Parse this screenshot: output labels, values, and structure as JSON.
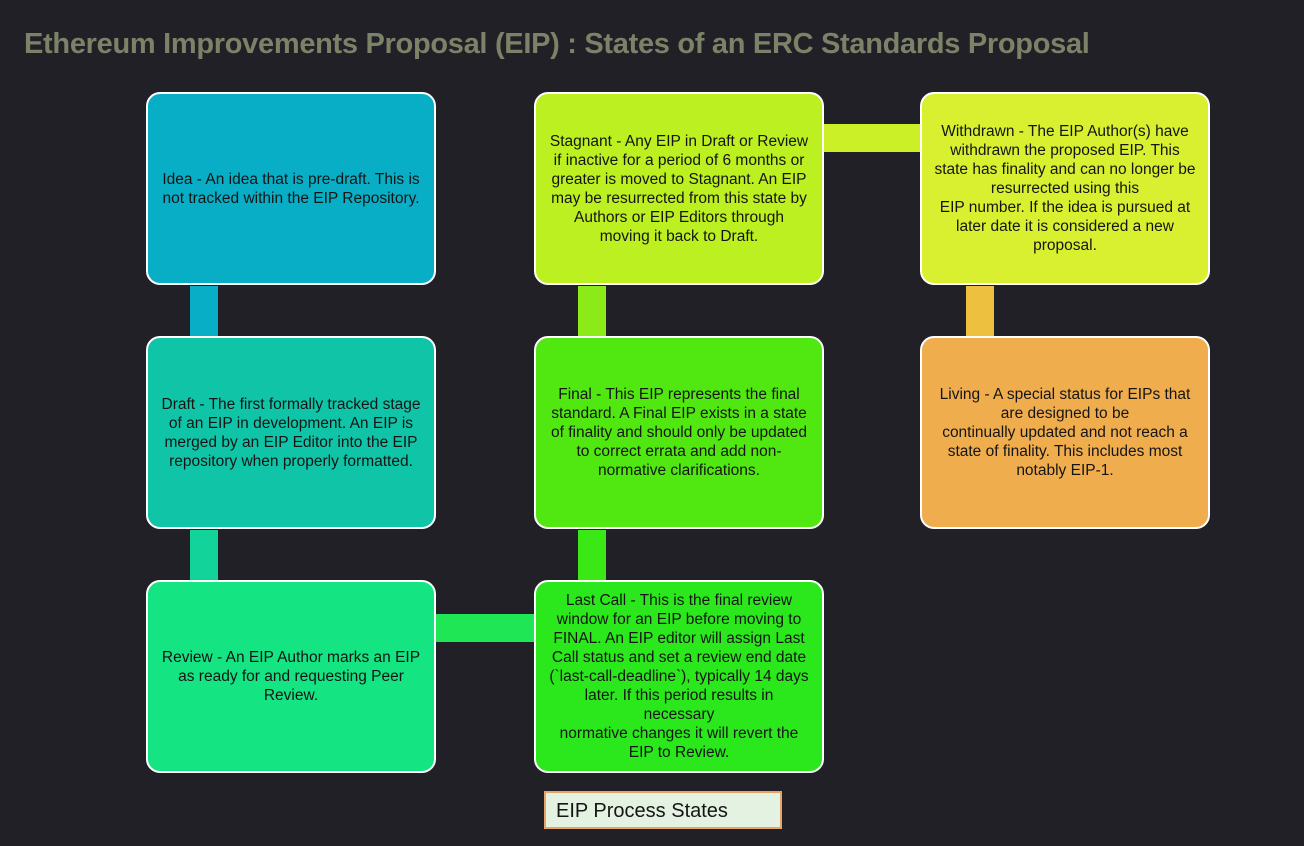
{
  "title": "Ethereum Improvements Proposal (EIP) : States of an ERC Standards Proposal",
  "legend": "EIP Process States",
  "colors": {
    "background": "#212026",
    "title": "#7c8268",
    "idea": "#08adc6",
    "draft": "#10c4a8",
    "review": "#14e482",
    "last_call": "#2ae81c",
    "final": "#50e810",
    "stagnant": "#bcf020",
    "withdrawn": "#d8f030",
    "living": "#f0ad4e"
  },
  "states": {
    "idea": "Idea - An idea that is pre-draft. This is not tracked within the EIP Repository.",
    "draft": "Draft - The first formally tracked stage of an EIP in development. An EIP is merged by an EIP Editor into the EIP repository when properly formatted.",
    "review": "Review - An EIP Author marks an EIP as ready for and requesting Peer Review.",
    "last_call": "Last Call - This is the final review window for an EIP before moving to FINAL. An EIP editor will assign Last Call status and set a review end date (`last-call-deadline`), typically 14 days later. If this period results in necessary\nnormative changes it will revert the EIP to Review.",
    "final": "Final - This EIP represents the final standard. A Final EIP exists in a state of finality and should only be updated to correct errata and add non-normative clarifications.",
    "stagnant": "Stagnant - Any EIP in Draft or Review if inactive for a period of 6 months or greater is moved to Stagnant. An EIP may be resurrected from this state by Authors or EIP Editors through moving it back to Draft.",
    "withdrawn": "Withdrawn - The EIP Author(s) have withdrawn the proposed EIP. This state has finality and can no longer be resurrected using this\nEIP number. If the idea is pursued at later date it is considered a new proposal.",
    "living": "Living - A special status for EIPs that are designed to be\ncontinually updated and not reach a state of finality. This includes most notably EIP-1."
  }
}
